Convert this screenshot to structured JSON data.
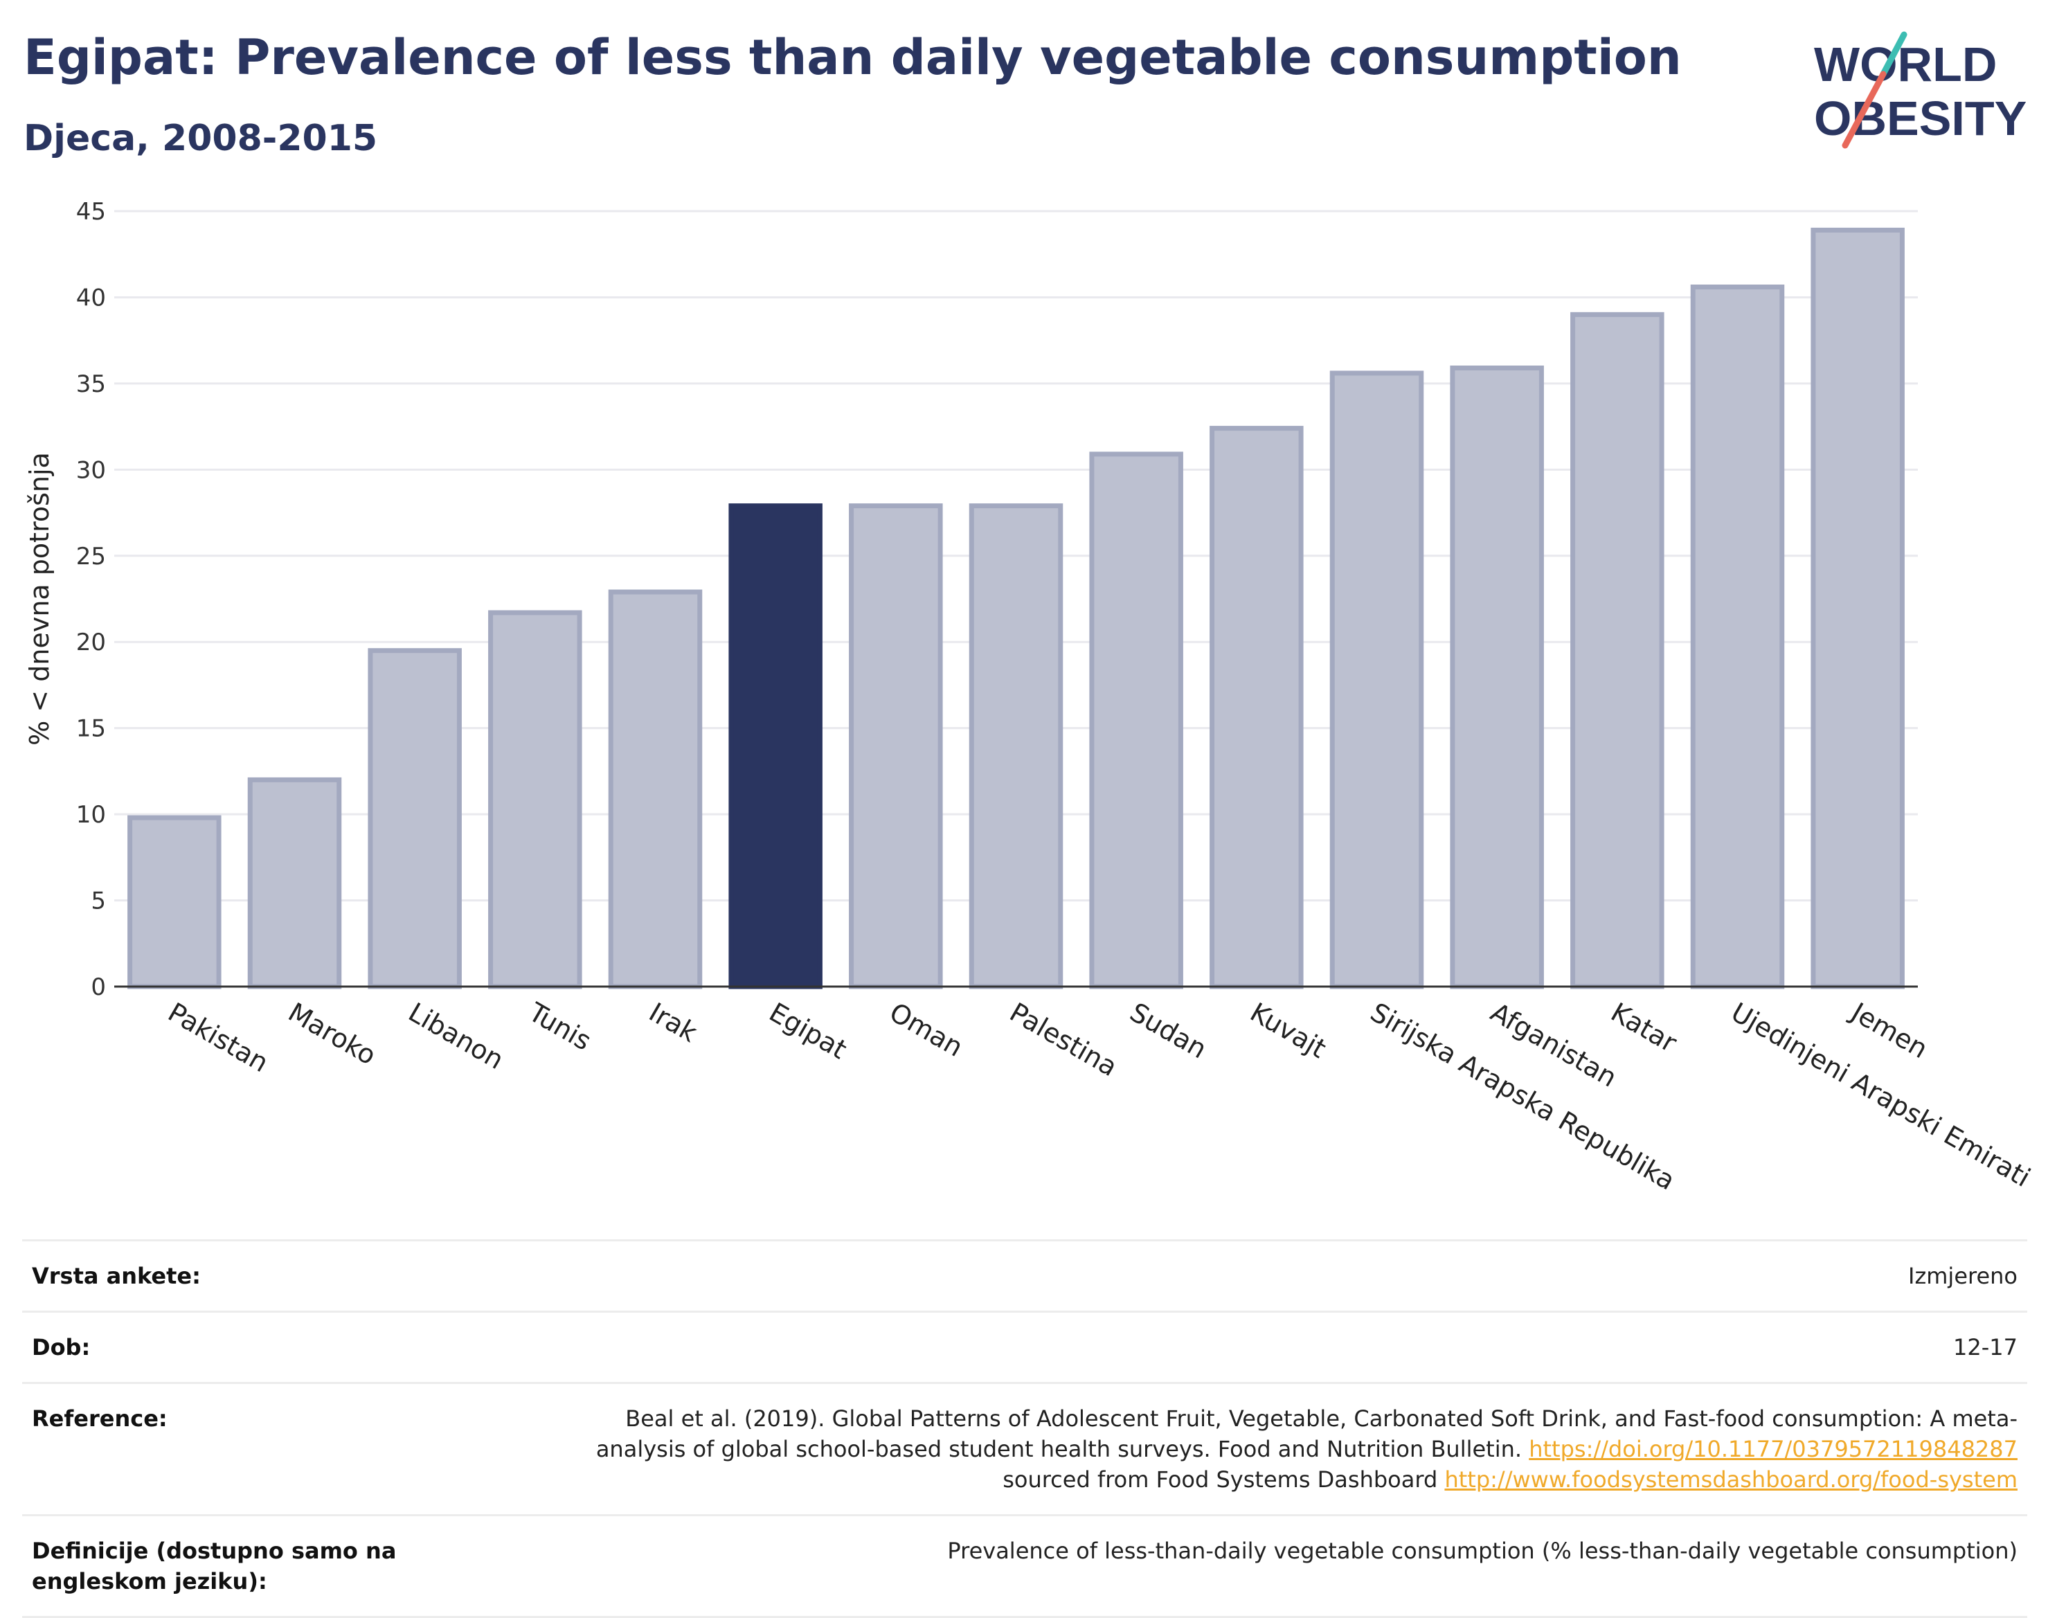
{
  "header": {
    "title": "Egipat: Prevalence of less than daily vegetable consumption",
    "subtitle": "Djeca, 2008-2015"
  },
  "logo": {
    "line1": "WORLD",
    "line2": "OBESITY",
    "icon": "world-obesity-logo",
    "slash_colors": [
      "#e8685a",
      "#3cbdb2"
    ]
  },
  "chart_data": {
    "type": "bar",
    "title": "Egipat: Prevalence of less than daily vegetable consumption",
    "subtitle": "Djeca, 2008-2015",
    "ylabel": "% < dnevna potrošnja",
    "xlabel": "",
    "ylim": [
      0,
      45
    ],
    "yticks": [
      0,
      5,
      10,
      15,
      20,
      25,
      30,
      35,
      40,
      45
    ],
    "grid": true,
    "categories": [
      "Pakistan",
      "Maroko",
      "Libanon",
      "Tunis",
      "Irak",
      "Egipat",
      "Oman",
      "Palestina",
      "Sudan",
      "Kuvajt",
      "Sirijska Arapska Republika",
      "Afganistan",
      "Katar",
      "Ujedinjeni Arapski Emirati",
      "Jemen"
    ],
    "values": [
      9.8,
      12.0,
      19.5,
      21.7,
      22.9,
      27.9,
      27.9,
      27.9,
      30.9,
      32.4,
      35.6,
      35.9,
      39.0,
      40.6,
      43.9
    ],
    "highlight": "Egipat",
    "colors": {
      "bar": "#bcc0d0",
      "bar_edge": "#a3a9c0",
      "highlight": "#2a3560",
      "grid": "#e9e9ee",
      "axis": "#333333"
    }
  },
  "info": {
    "survey_label": "Vrsta ankete:",
    "survey_value": "Izmjereno",
    "age_label": "Dob:",
    "age_value": "12-17",
    "reference_label": "Reference:",
    "reference_text1": "Beal et al. (2019). Global Patterns of Adolescent Fruit, Vegetable, Carbonated Soft Drink, and Fast-food consumption: A meta-analysis of global school-based student health surveys. Food and Nutrition Bulletin. ",
    "reference_link1": "https://doi.org/10.1177/0379572119848287",
    "reference_text2": " sourced from Food Systems Dashboard ",
    "reference_link2": "http://www.foodsystemsdashboard.org/food-system",
    "definition_label": "Definicije (dostupno samo na engleskom jeziku):",
    "definition_value": "Prevalence of less-than-daily vegetable consumption (% less-than-daily vegetable consumption)"
  }
}
